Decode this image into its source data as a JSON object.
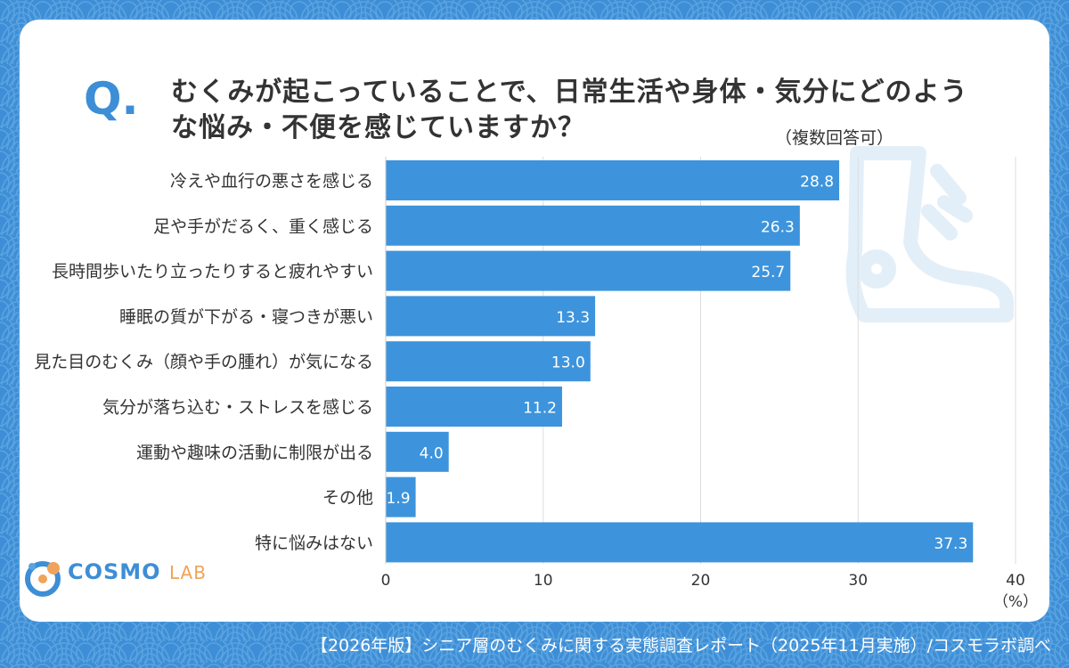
{
  "colors": {
    "background": "#3d8ed6",
    "bar": "#3d94dc",
    "accent": "#3d8ed6",
    "logo_orange": "#f0a35a",
    "illustration": "#e3eff8"
  },
  "question": {
    "mark": "Q.",
    "text": "むくみが起こっていることで、日常生活や身体・気分にどのような悩み・不便を感じていますか？",
    "note": "（複数回答可）"
  },
  "chart_data": {
    "type": "bar",
    "orientation": "horizontal",
    "categories": [
      "冷えや血行の悪さを感じる",
      "足や手がだるく、重く感じる",
      "長時間歩いたり立ったりすると疲れやすい",
      "睡眠の質が下がる・寝つきが悪い",
      "見た目のむくみ（顔や手の腫れ）が気になる",
      "気分が落ち込む・ストレスを感じる",
      "運動や趣味の活動に制限が出る",
      "その他",
      "特に悩みはない"
    ],
    "values": [
      28.8,
      26.3,
      25.7,
      13.3,
      13.0,
      11.2,
      4.0,
      1.9,
      37.3
    ],
    "value_labels": [
      "28.8",
      "26.3",
      "25.7",
      "13.3",
      "13.0",
      "11.2",
      "4.0",
      "1.9",
      "37.3"
    ],
    "xlim": [
      0,
      40
    ],
    "ticks": [
      "0",
      "10",
      "20",
      "30",
      "40"
    ],
    "unit": "（%）",
    "grid": true
  },
  "brand": {
    "name": "COSMO",
    "suffix": "LAB",
    "icon": "cosmo-lab-logo-icon"
  },
  "footer": {
    "source": "【2026年版】シニア層のむくみに関する実態調査レポート（2025年11月実施）/コスモラボ調べ"
  },
  "illustration": {
    "icon": "swollen-foot-icon"
  }
}
